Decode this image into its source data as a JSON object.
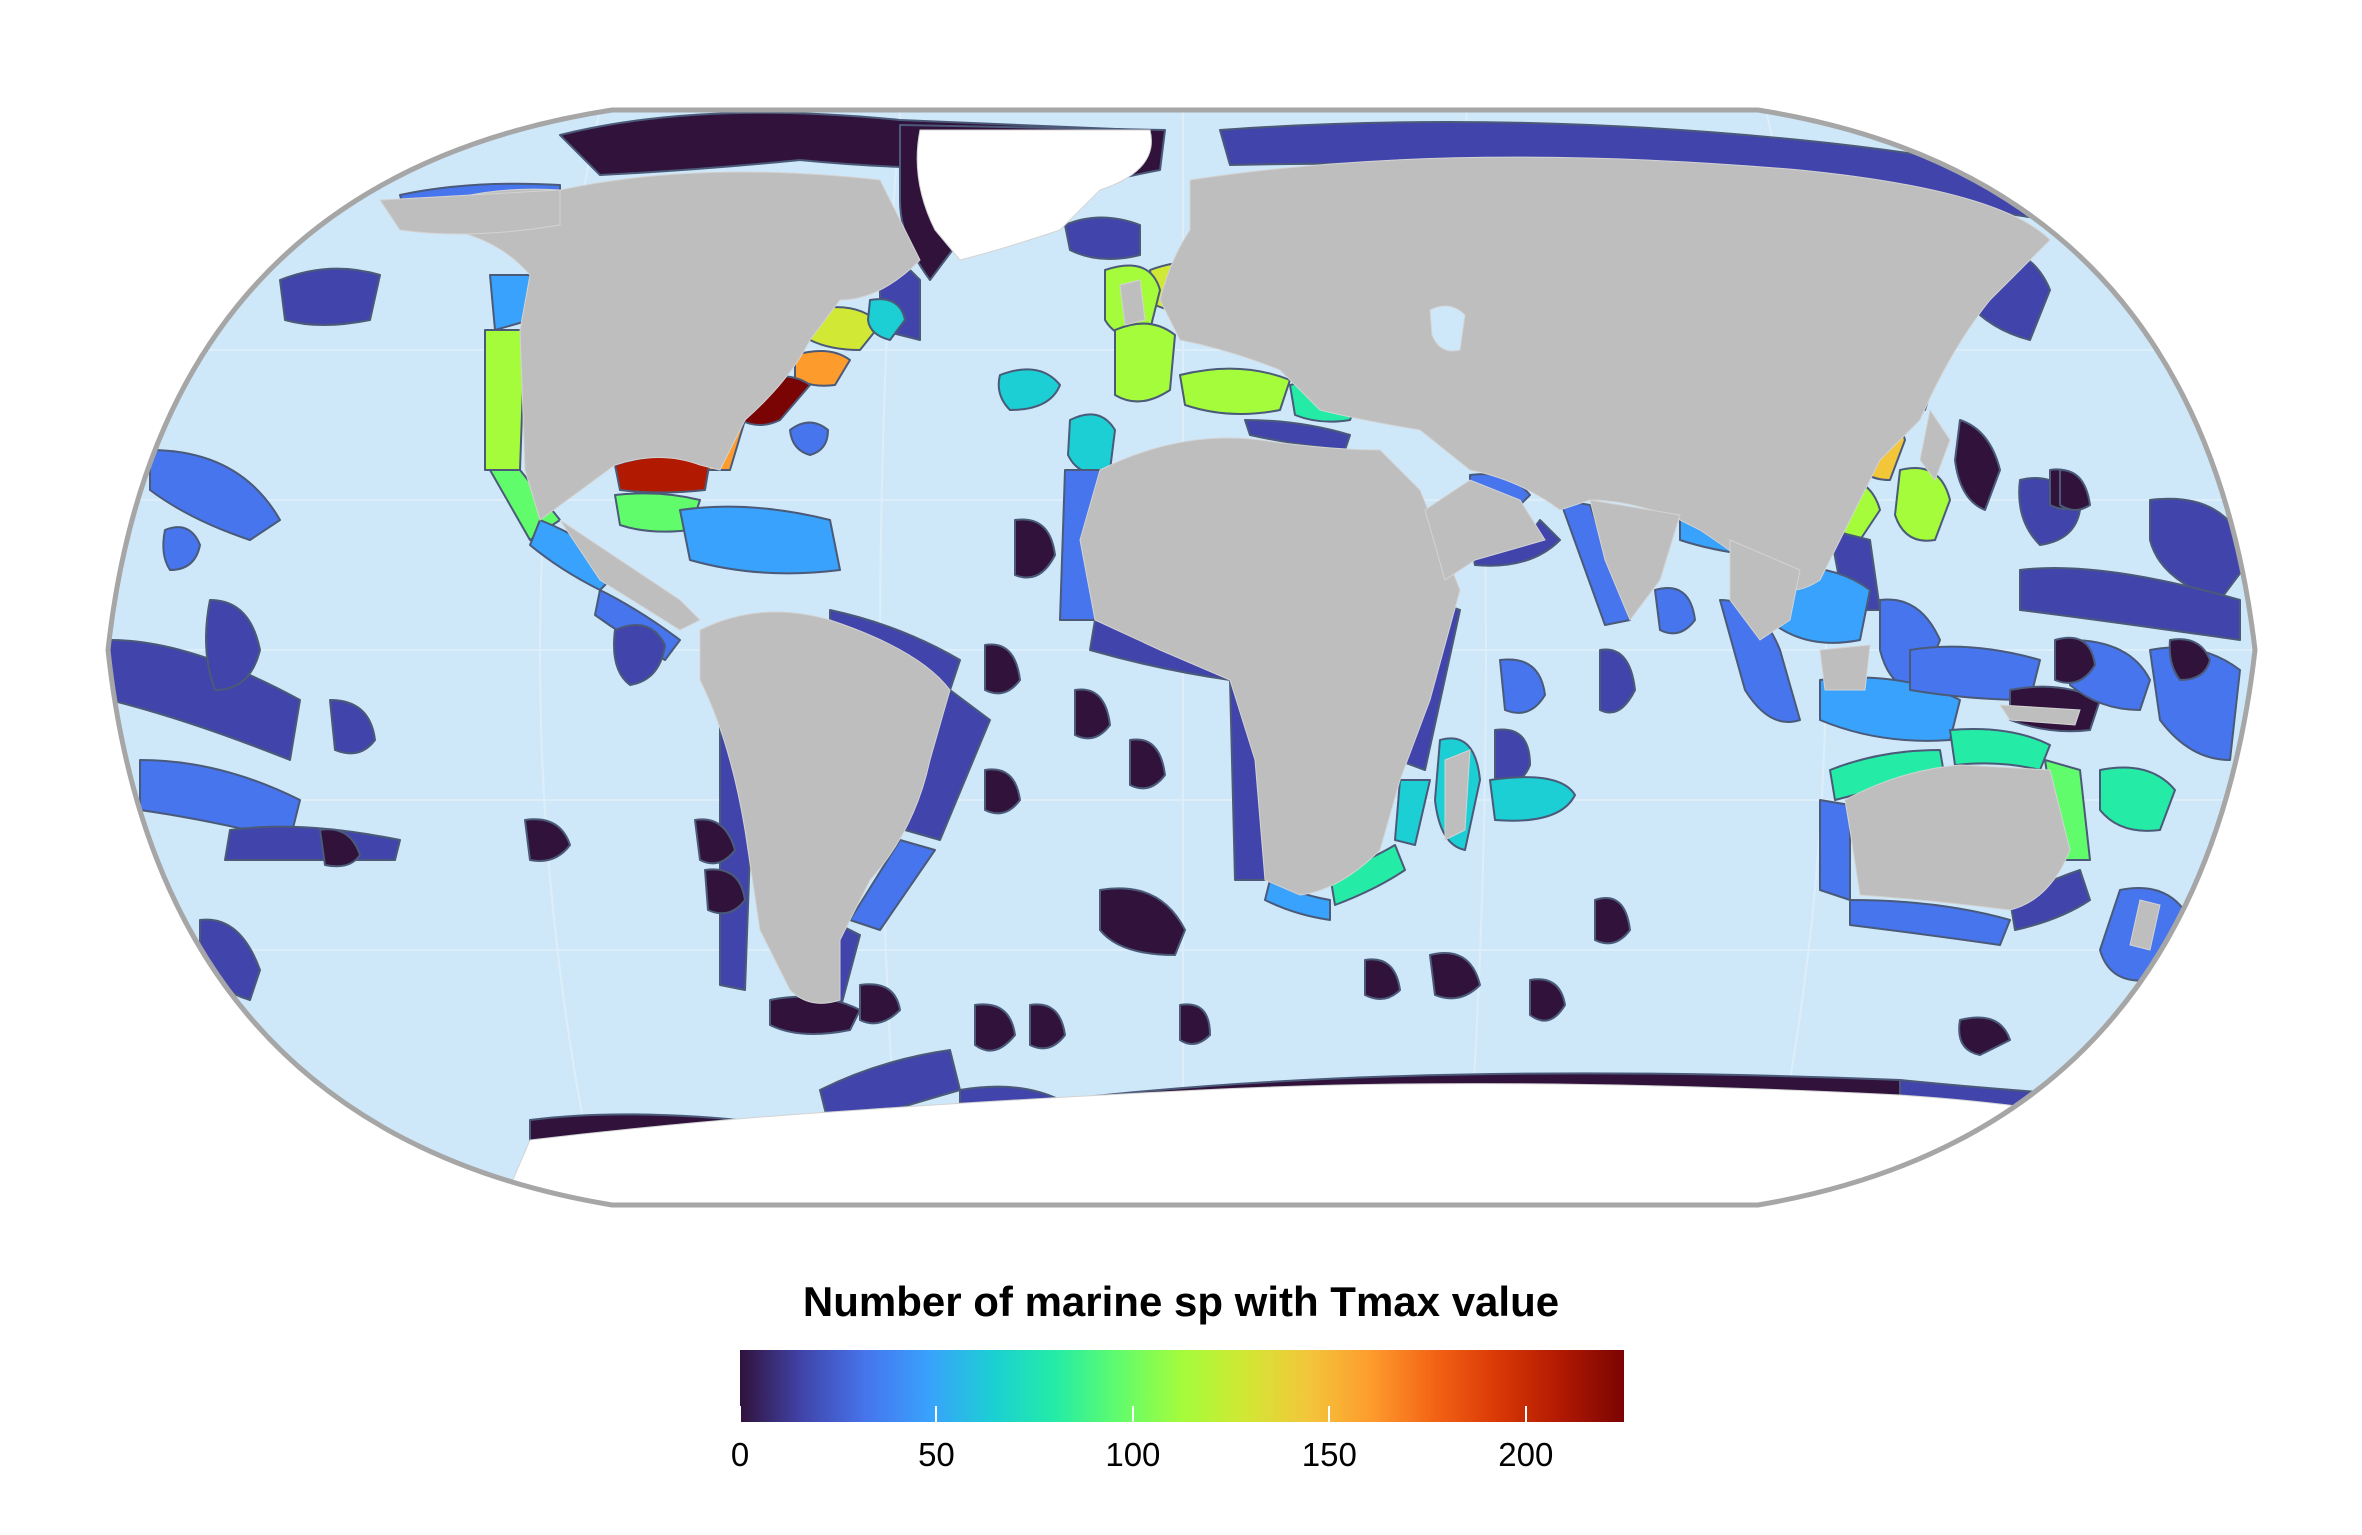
{
  "legend": {
    "title": "Number of marine sp with Tmax value",
    "min": 0,
    "max": 225,
    "ticks": [
      {
        "value": 0,
        "label": "0"
      },
      {
        "value": 50,
        "label": "50"
      },
      {
        "value": 100,
        "label": "100"
      },
      {
        "value": 150,
        "label": "150"
      },
      {
        "value": 200,
        "label": "200"
      }
    ],
    "palette": [
      "#30123B",
      "#4145AB",
      "#4675ED",
      "#39A2FC",
      "#1BCFD4",
      "#24ECA6",
      "#61FC6C",
      "#A4FC3B",
      "#D1E834",
      "#F3C63A",
      "#FE9B2D",
      "#F36315",
      "#D93806",
      "#B11901",
      "#7A0403"
    ]
  },
  "colors": {
    "ocean": "#CFE8F9",
    "land": "#BEBEBE",
    "ice": "#FFFFFF",
    "frame": "#A6A6A6",
    "region_stroke": "#4A5A78"
  },
  "projection": "Robinson"
}
